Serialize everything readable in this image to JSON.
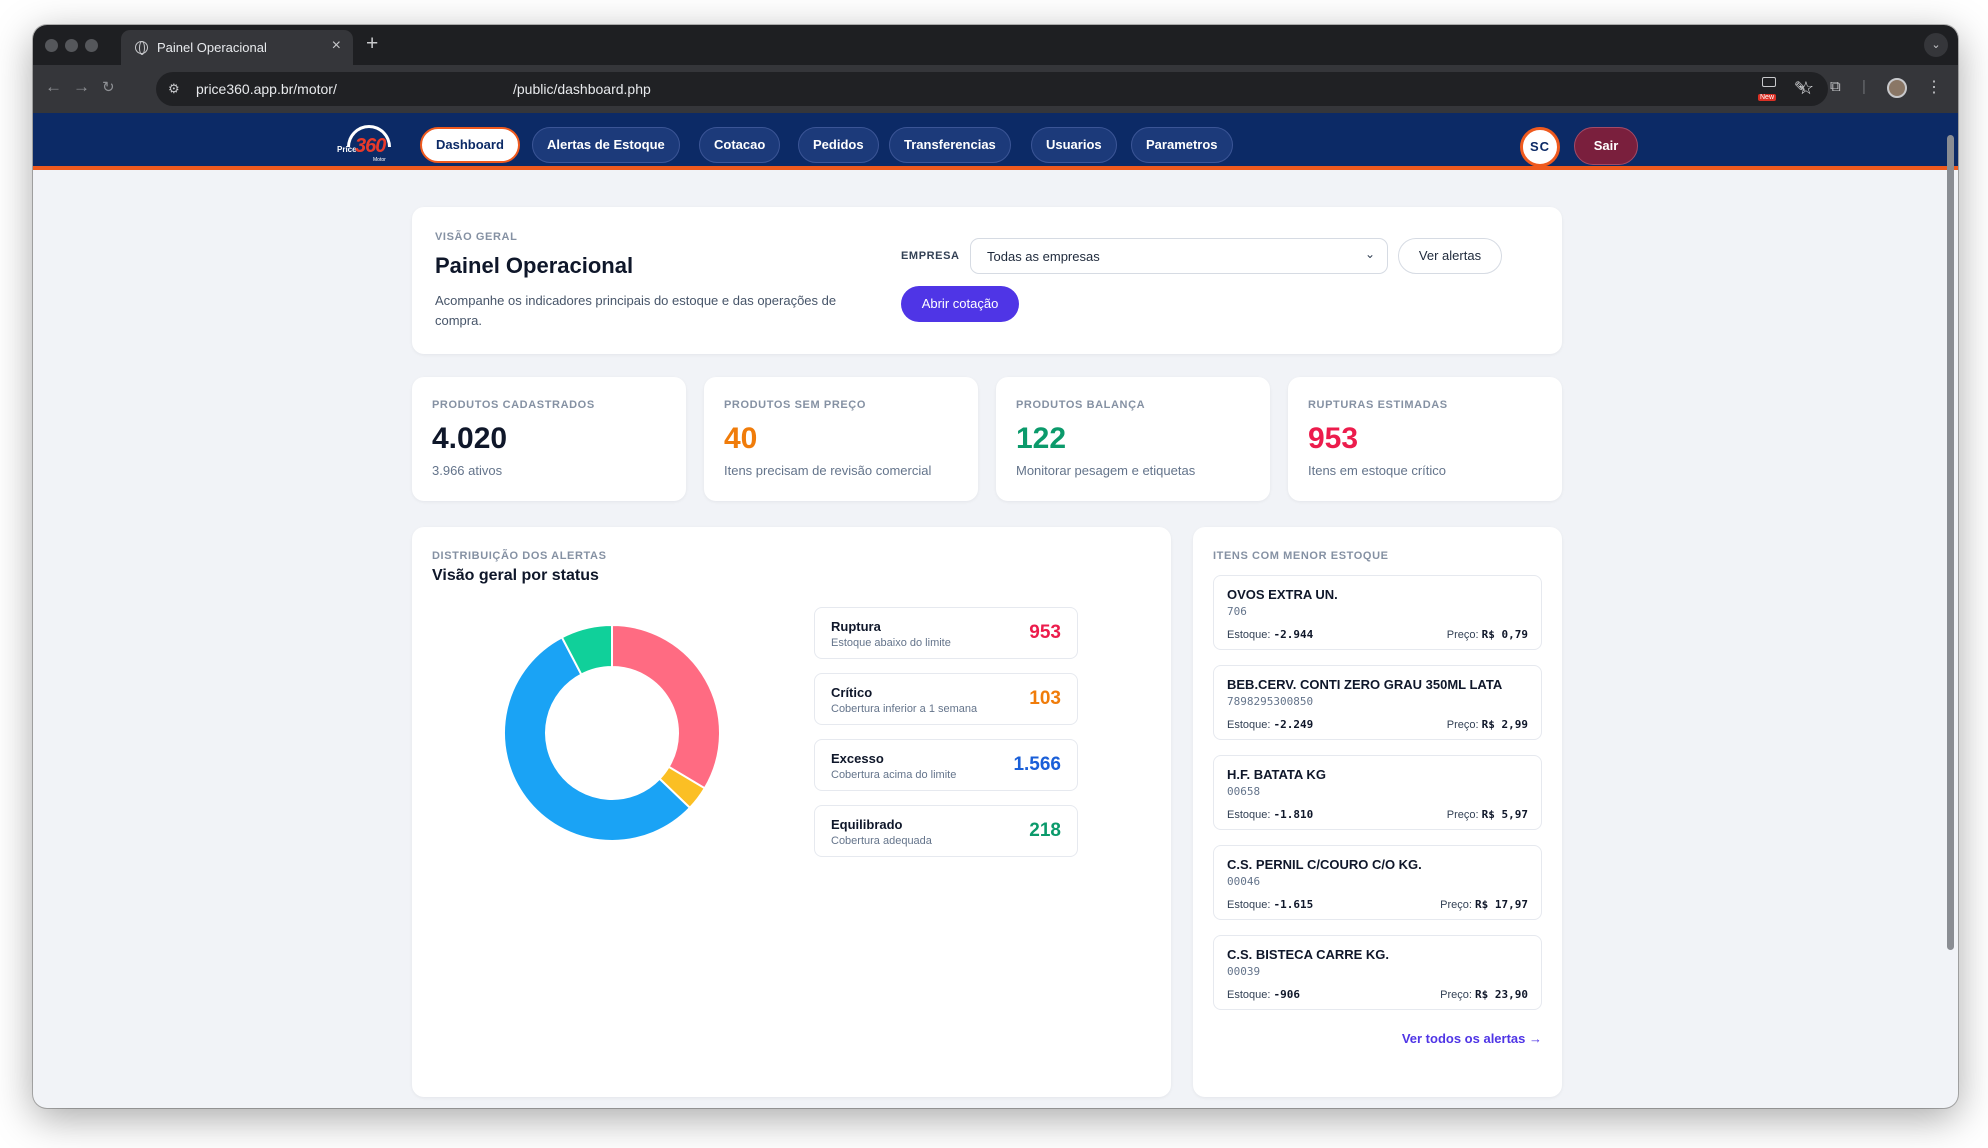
{
  "browser": {
    "tab_title": "Painel Operacional",
    "url_prefix": "price360.app.br/motor/",
    "url_suffix": "/public/dashboard.php",
    "new_badge": "New"
  },
  "header": {
    "logo_text": "360",
    "logo_prefix": "Price",
    "logo_sub": "Motor",
    "nav": [
      {
        "label": "Dashboard",
        "active": true
      },
      {
        "label": "Alertas de Estoque"
      },
      {
        "label": "Cotacao"
      },
      {
        "label": "Pedidos"
      },
      {
        "label": "Transferencias"
      },
      {
        "label": "Usuarios"
      },
      {
        "label": "Parametros"
      }
    ],
    "avatar_initials": "SC",
    "logout_label": "Sair"
  },
  "overview": {
    "eyebrow": "VISÃO GERAL",
    "title": "Painel Operacional",
    "description": "Acompanhe os indicadores principais do estoque e das operações de compra.",
    "empresa_label": "EMPRESA",
    "empresa_value": "Todas as empresas",
    "ver_alertas_label": "Ver alertas",
    "abrir_cotacao_label": "Abrir cotação"
  },
  "stats": [
    {
      "label": "PRODUTOS CADASTRADOS",
      "value": "4.020",
      "sub": "3.966 ativos",
      "color": "#0f172a"
    },
    {
      "label": "PRODUTOS SEM PREÇO",
      "value": "40",
      "sub": "Itens precisam de revisão comercial",
      "color": "#f07c0a"
    },
    {
      "label": "PRODUTOS BALANÇA",
      "value": "122",
      "sub": "Monitorar pesagem e etiquetas",
      "color": "#0b9a6b"
    },
    {
      "label": "RUPTURAS ESTIMADAS",
      "value": "953",
      "sub": "Itens em estoque crítico",
      "color": "#ec1c4c"
    }
  ],
  "alerts": {
    "eyebrow": "DISTRIBUIÇÃO DOS ALERTAS",
    "title": "Visão geral por status",
    "items": [
      {
        "name": "Ruptura",
        "desc": "Estoque abaixo do limite",
        "value": "953",
        "color": "#ec1c4c"
      },
      {
        "name": "Crítico",
        "desc": "Cobertura inferior a 1 semana",
        "value": "103",
        "color": "#f07c0a"
      },
      {
        "name": "Excesso",
        "desc": "Cobertura acima do limite",
        "value": "1.566",
        "color": "#1a5fd8"
      },
      {
        "name": "Equilibrado",
        "desc": "Cobertura adequada",
        "value": "218",
        "color": "#0b9a6b"
      }
    ]
  },
  "chart_data": {
    "type": "pie",
    "categories": [
      "Ruptura",
      "Crítico",
      "Excesso",
      "Equilibrado"
    ],
    "values": [
      953,
      103,
      1566,
      218
    ],
    "colors": [
      "#ff6b82",
      "#fbbf24",
      "#1aa3f5",
      "#10d09a"
    ],
    "donut": true
  },
  "low_stock": {
    "eyebrow": "ITENS COM MENOR ESTOQUE",
    "stock_label": "Estoque:",
    "price_label": "Preço:",
    "items": [
      {
        "name": "OVOS EXTRA UN.",
        "code": "706",
        "stock": "-2.944",
        "price": "R$ 0,79"
      },
      {
        "name": "BEB.CERV. CONTI ZERO GRAU 350ML LATA",
        "code": "7898295300850",
        "stock": "-2.249",
        "price": "R$ 2,99"
      },
      {
        "name": "H.F. BATATA KG",
        "code": "00658",
        "stock": "-1.810",
        "price": "R$ 5,97"
      },
      {
        "name": "C.S. PERNIL C/COURO C/O KG.",
        "code": "00046",
        "stock": "-1.615",
        "price": "R$ 17,97"
      },
      {
        "name": "C.S. BISTECA CARRE KG.",
        "code": "00039",
        "stock": "-906",
        "price": "R$ 23,90"
      }
    ],
    "see_all_label": "Ver todos os alertas →"
  }
}
